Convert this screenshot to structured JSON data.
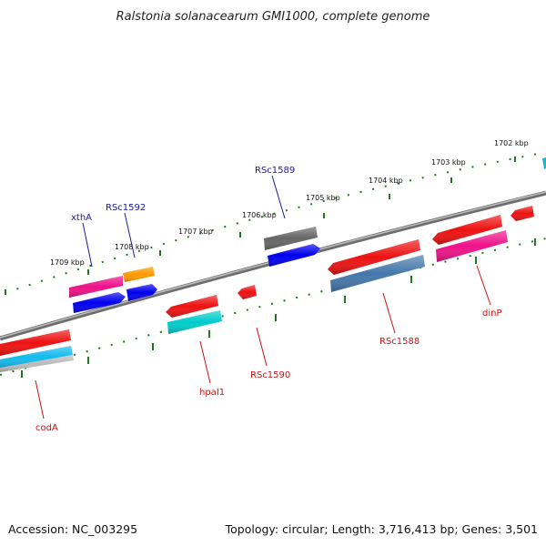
{
  "title": "Ralstonia solanacearum GMI1000, complete genome",
  "footer": {
    "accession": "Accession: NC_003295",
    "summary": "Topology: circular; Length: 3,716,413 bp; Genes: 3,501"
  },
  "colors": {
    "backbone": "#8a8a8a",
    "ticks": "#1f7a1f",
    "forward_label": "#1a1a99",
    "reverse_label": "#cc1111"
  },
  "scale": {
    "unit": "kbp",
    "labels": [
      "1709 kbp",
      "1708 kbp",
      "1707 kbp",
      "1706 kbp",
      "1705 kbp",
      "1704 kbp",
      "1703 kbp",
      "1702 kbp"
    ]
  },
  "gene_labels": {
    "forward": [
      "xthA",
      "RSc1592",
      "RSc1589"
    ],
    "reverse": [
      "codA",
      "hpaI1",
      "RSc1590",
      "RSc1588",
      "dinP"
    ]
  },
  "features": [
    {
      "name": "forward-outer-magenta",
      "color": "#ee1188"
    },
    {
      "name": "forward-outer-orange",
      "color": "#ff9900"
    },
    {
      "name": "forward-outer-gray",
      "color": "#666666"
    },
    {
      "name": "forward-inner-blue",
      "color": "#0000ee"
    },
    {
      "name": "reverse-red",
      "color": "#ee1111"
    },
    {
      "name": "reverse-cyan",
      "color": "#00cccc"
    },
    {
      "name": "reverse-steelblue",
      "color": "#4477aa"
    },
    {
      "name": "reverse-skyblue",
      "color": "#11bbee"
    },
    {
      "name": "reverse-lightgray",
      "color": "#bbbbbb"
    }
  ]
}
